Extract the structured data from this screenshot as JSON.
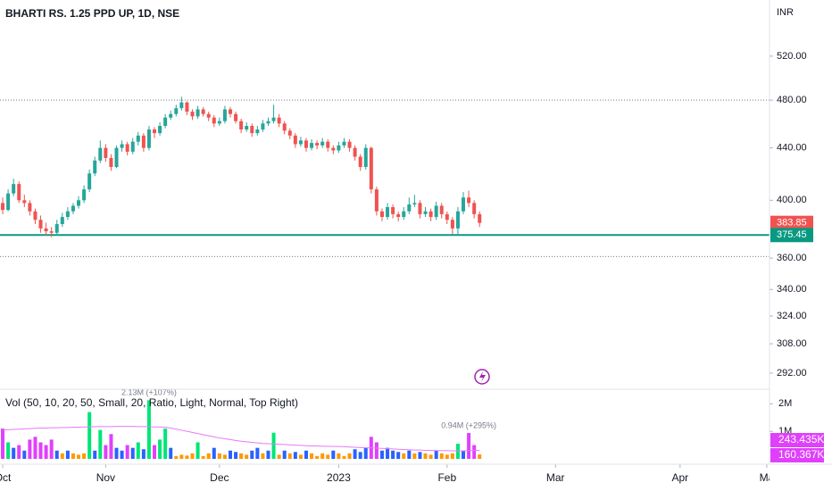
{
  "chart_data": {
    "type": "candlestick",
    "title": "BHARTI RS. 1.25 PPD UP, 1D, NSE",
    "currency": "INR",
    "log_scale": true,
    "up_color": "#26a69a",
    "down_color": "#ef5350",
    "ylim": [
      284,
      576
    ],
    "yticks": [
      {
        "value": 520,
        "label": "520.00"
      },
      {
        "value": 480,
        "label": "480.00"
      },
      {
        "value": 440,
        "label": "440.00"
      },
      {
        "value": 400,
        "label": "400.00"
      },
      {
        "value": 360,
        "label": "360.00"
      },
      {
        "value": 340,
        "label": "340.00"
      },
      {
        "value": 324,
        "label": "324.00"
      },
      {
        "value": 308,
        "label": "308.00"
      },
      {
        "value": 292,
        "label": "292.00"
      }
    ],
    "xlim": [
      -0.5,
      141.5
    ],
    "xticks": [
      {
        "value": 0,
        "label": "Oct"
      },
      {
        "value": 19,
        "label": "Nov"
      },
      {
        "value": 40,
        "label": "Dec"
      },
      {
        "value": 62,
        "label": "2023"
      },
      {
        "value": 82,
        "label": "Feb"
      },
      {
        "value": 102,
        "label": "Mar"
      },
      {
        "value": 125,
        "label": "Apr"
      },
      {
        "value": 141,
        "label": "Ma"
      }
    ],
    "last_price": 383.85,
    "level_line": 375.45,
    "level_color": "#089981",
    "dotted_levels": [
      480,
      361
    ],
    "ohlc": [
      [
        398,
        402,
        390,
        393
      ],
      [
        393,
        408,
        392,
        405
      ],
      [
        405,
        416,
        403,
        412
      ],
      [
        412,
        414,
        398,
        400
      ],
      [
        400,
        404,
        395,
        398
      ],
      [
        398,
        400,
        389,
        392
      ],
      [
        392,
        394,
        383,
        386
      ],
      [
        386,
        389,
        377,
        380
      ],
      [
        380,
        384,
        375,
        378
      ],
      [
        378,
        381,
        374,
        377
      ],
      [
        377,
        386,
        375,
        383
      ],
      [
        383,
        391,
        381,
        388
      ],
      [
        388,
        395,
        386,
        392
      ],
      [
        392,
        398,
        390,
        396
      ],
      [
        396,
        403,
        394,
        400
      ],
      [
        400,
        411,
        398,
        408
      ],
      [
        408,
        423,
        406,
        420
      ],
      [
        420,
        433,
        418,
        430
      ],
      [
        430,
        446,
        428,
        440
      ],
      [
        440,
        443,
        429,
        432
      ],
      [
        432,
        435,
        422,
        425
      ],
      [
        425,
        442,
        424,
        440
      ],
      [
        440,
        446,
        437,
        443
      ],
      [
        443,
        445,
        434,
        437
      ],
      [
        437,
        448,
        435,
        445
      ],
      [
        445,
        453,
        442,
        450
      ],
      [
        450,
        452,
        437,
        440
      ],
      [
        440,
        458,
        438,
        455
      ],
      [
        455,
        457,
        448,
        452
      ],
      [
        452,
        461,
        450,
        458
      ],
      [
        458,
        468,
        456,
        465
      ],
      [
        465,
        471,
        463,
        468
      ],
      [
        468,
        476,
        466,
        473
      ],
      [
        473,
        483,
        471,
        478
      ],
      [
        478,
        479,
        467,
        470
      ],
      [
        470,
        472,
        463,
        466
      ],
      [
        466,
        475,
        464,
        472
      ],
      [
        472,
        474,
        466,
        468
      ],
      [
        468,
        470,
        462,
        465
      ],
      [
        465,
        467,
        457,
        460
      ],
      [
        460,
        465,
        458,
        462
      ],
      [
        462,
        475,
        460,
        472
      ],
      [
        472,
        474,
        465,
        468
      ],
      [
        468,
        470,
        460,
        462
      ],
      [
        462,
        464,
        452,
        455
      ],
      [
        455,
        461,
        453,
        458
      ],
      [
        458,
        460,
        449,
        452
      ],
      [
        452,
        458,
        450,
        455
      ],
      [
        455,
        463,
        453,
        460
      ],
      [
        460,
        465,
        458,
        462
      ],
      [
        462,
        476,
        460,
        465
      ],
      [
        465,
        468,
        457,
        460
      ],
      [
        460,
        462,
        451,
        454
      ],
      [
        454,
        456,
        447,
        450
      ],
      [
        450,
        452,
        440,
        443
      ],
      [
        443,
        449,
        441,
        446
      ],
      [
        446,
        448,
        437,
        440
      ],
      [
        440,
        447,
        438,
        444
      ],
      [
        444,
        446,
        439,
        442
      ],
      [
        442,
        448,
        440,
        445
      ],
      [
        445,
        447,
        437,
        440
      ],
      [
        440,
        442,
        435,
        438
      ],
      [
        438,
        445,
        436,
        442
      ],
      [
        442,
        448,
        440,
        445
      ],
      [
        445,
        447,
        437,
        440
      ],
      [
        440,
        442,
        430,
        433
      ],
      [
        433,
        435,
        422,
        425
      ],
      [
        425,
        443,
        423,
        440
      ],
      [
        440,
        441,
        405,
        408
      ],
      [
        408,
        410,
        389,
        392
      ],
      [
        392,
        394,
        385,
        388
      ],
      [
        388,
        398,
        386,
        395
      ],
      [
        395,
        397,
        387,
        390
      ],
      [
        390,
        392,
        385,
        388
      ],
      [
        388,
        395,
        386,
        392
      ],
      [
        392,
        402,
        390,
        397
      ],
      [
        397,
        404,
        395,
        398
      ],
      [
        398,
        400,
        387,
        390
      ],
      [
        390,
        395,
        388,
        392
      ],
      [
        392,
        394,
        385,
        388
      ],
      [
        388,
        399,
        386,
        396
      ],
      [
        396,
        398,
        387,
        390
      ],
      [
        390,
        392,
        383,
        386
      ],
      [
        386,
        388,
        376,
        380
      ],
      [
        380,
        395,
        376,
        392
      ],
      [
        392,
        406,
        390,
        402
      ],
      [
        402,
        407,
        395,
        398
      ],
      [
        398,
        400,
        387,
        390
      ],
      [
        390,
        392,
        381,
        383.85
      ]
    ],
    "volume_legend": "Vol (50, 10, 20, 50, Small, 20, Ratio, Light, Normal, Top Right)",
    "vlim": [
      0,
      2.4
    ],
    "vticks": [
      {
        "value": 2,
        "label": "2M"
      },
      {
        "value": 1,
        "label": "1M"
      }
    ],
    "volume": [
      1.1,
      0.6,
      0.4,
      0.5,
      0.3,
      0.7,
      0.8,
      0.6,
      0.5,
      0.7,
      0.3,
      0.2,
      0.3,
      0.2,
      0.15,
      0.2,
      1.7,
      0.3,
      1.05,
      0.5,
      0.9,
      0.4,
      0.3,
      0.5,
      0.4,
      0.6,
      0.35,
      2.13,
      0.5,
      0.7,
      1.1,
      0.4,
      0.1,
      0.15,
      0.12,
      0.2,
      0.6,
      0.1,
      0.2,
      0.4,
      0.2,
      0.15,
      0.3,
      0.25,
      0.2,
      0.15,
      0.3,
      0.4,
      0.2,
      0.3,
      0.95,
      0.15,
      0.3,
      0.2,
      0.25,
      0.15,
      0.3,
      0.2,
      0.1,
      0.2,
      0.15,
      0.3,
      0.2,
      0.1,
      0.2,
      0.35,
      0.25,
      0.4,
      0.8,
      0.6,
      0.3,
      0.4,
      0.3,
      0.25,
      0.2,
      0.3,
      0.2,
      0.25,
      0.2,
      0.15,
      0.3,
      0.2,
      0.15,
      0.2,
      0.55,
      0.3,
      0.94,
      0.5,
      0.16
    ],
    "volume_colors": [
      "#e040fb",
      "#00e676",
      "#2962ff",
      "#e040fb",
      "#2962ff",
      "#e040fb",
      "#e040fb",
      "#e040fb",
      "#e040fb",
      "#e040fb",
      "#2962ff",
      "#ff9800",
      "#2962ff",
      "#ff9800",
      "#ff9800",
      "#ff9800",
      "#00e676",
      "#2962ff",
      "#00e676",
      "#e040fb",
      "#e040fb",
      "#2962ff",
      "#2962ff",
      "#e040fb",
      "#2962ff",
      "#00e676",
      "#2962ff",
      "#00e676",
      "#e040fb",
      "#00e676",
      "#00e676",
      "#2962ff",
      "#ff9800",
      "#ff9800",
      "#ff9800",
      "#ff9800",
      "#00e676",
      "#ff9800",
      "#ff9800",
      "#2962ff",
      "#ff9800",
      "#ff9800",
      "#2962ff",
      "#2962ff",
      "#ff9800",
      "#ff9800",
      "#2962ff",
      "#2962ff",
      "#ff9800",
      "#2962ff",
      "#00e676",
      "#ff9800",
      "#2962ff",
      "#ff9800",
      "#2962ff",
      "#ff9800",
      "#2962ff",
      "#ff9800",
      "#ff9800",
      "#ff9800",
      "#ff9800",
      "#2962ff",
      "#ff9800",
      "#ff9800",
      "#ff9800",
      "#2962ff",
      "#2962ff",
      "#2962ff",
      "#e040fb",
      "#e040fb",
      "#2962ff",
      "#2962ff",
      "#2962ff",
      "#2962ff",
      "#ff9800",
      "#2962ff",
      "#ff9800",
      "#2962ff",
      "#ff9800",
      "#ff9800",
      "#2962ff",
      "#ff9800",
      "#ff9800",
      "#ff9800",
      "#00e676",
      "#2962ff",
      "#e040fb",
      "#e040fb",
      "#ff9800"
    ],
    "volume_ma": [
      1.05,
      1.06,
      1.07,
      1.08,
      1.09,
      1.1,
      1.11,
      1.12,
      1.12,
      1.13,
      1.13,
      1.14,
      1.14,
      1.15,
      1.15,
      1.16,
      1.16,
      1.17,
      1.17,
      1.17,
      1.17,
      1.18,
      1.18,
      1.18,
      1.18,
      1.17,
      1.17,
      1.17,
      1.16,
      1.16,
      1.15,
      1.12,
      1.08,
      1.04,
      1.0,
      0.96,
      0.92,
      0.88,
      0.84,
      0.8,
      0.76,
      0.73,
      0.7,
      0.67,
      0.64,
      0.62,
      0.6,
      0.58,
      0.56,
      0.55,
      0.54,
      0.53,
      0.52,
      0.51,
      0.5,
      0.49,
      0.48,
      0.47,
      0.47,
      0.46,
      0.46,
      0.45,
      0.45,
      0.44,
      0.43,
      0.42,
      0.41,
      0.4,
      0.4,
      0.39,
      0.38,
      0.37,
      0.36,
      0.35,
      0.34,
      0.33,
      0.32,
      0.32,
      0.31,
      0.31,
      0.3,
      0.3,
      0.3,
      0.29,
      0.29,
      0.29,
      0.3,
      0.31,
      0.31
    ],
    "volume_ma_color": "#e879f9",
    "annotations": [
      {
        "text": "2.13M (+107%)",
        "x": 27
      },
      {
        "text": "0.94M (+295%)",
        "x": 86
      }
    ],
    "volume_price_labels": [
      "243.435K",
      "160.367K"
    ],
    "volume_label_color": "#e040fb"
  }
}
